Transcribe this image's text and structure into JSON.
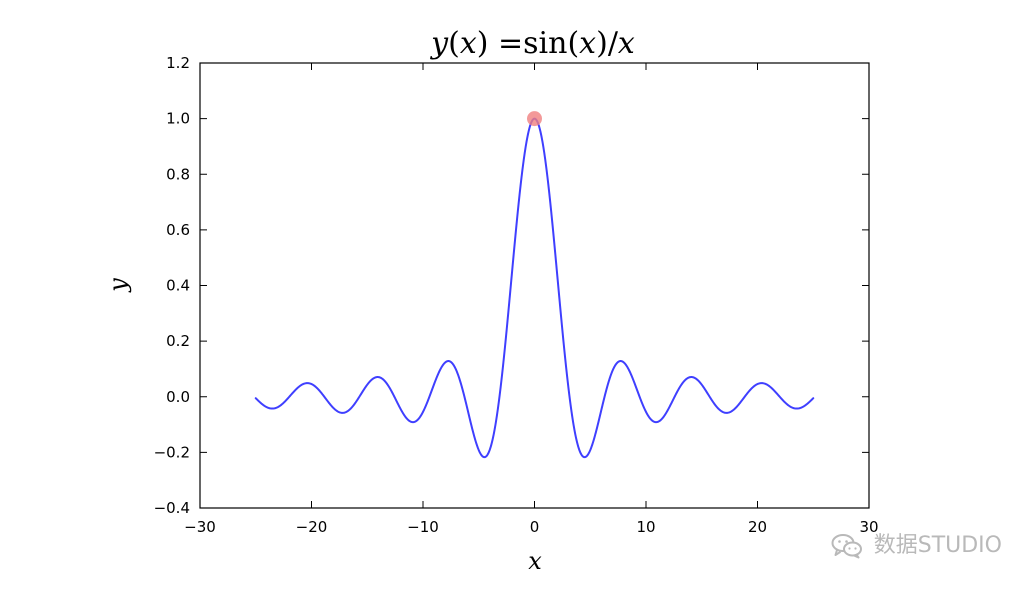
{
  "chart_data": {
    "type": "line",
    "title": "y(x) =sin(x)/x",
    "title_parts": {
      "func": "y",
      "paren_open": "(",
      "var": "x",
      "paren_close": ")",
      "equals": " =",
      "sin": "sin",
      "sin_open": "(",
      "sin_var": "x",
      "sin_close": ")",
      "slash": "/",
      "denominator": "x"
    },
    "xlabel": "x",
    "ylabel": "y",
    "xlim": [
      -30,
      30
    ],
    "ylim": [
      -0.4,
      1.2
    ],
    "x_ticks": [
      -30,
      -20,
      -10,
      0,
      10,
      20,
      30
    ],
    "y_ticks": [
      -0.4,
      -0.2,
      0.0,
      0.2,
      0.4,
      0.6,
      0.8,
      1.0,
      1.2
    ],
    "x_tick_labels": [
      "−30",
      "−20",
      "−10",
      "0",
      "10",
      "20",
      "30"
    ],
    "y_tick_labels": [
      "−0.4",
      "−0.2",
      "0.0",
      "0.2",
      "0.4",
      "0.6",
      "0.8",
      "1.0",
      "1.2"
    ],
    "grid": false,
    "series": [
      {
        "function": "sin(x)/x",
        "domain": [
          -25,
          25
        ],
        "color": "#3f3fff"
      }
    ],
    "highlight_point": {
      "x": 0,
      "y": 1.0,
      "color": "#f08080"
    }
  },
  "watermark": {
    "icon": "wechat-icon",
    "text": "数据STUDIO"
  }
}
